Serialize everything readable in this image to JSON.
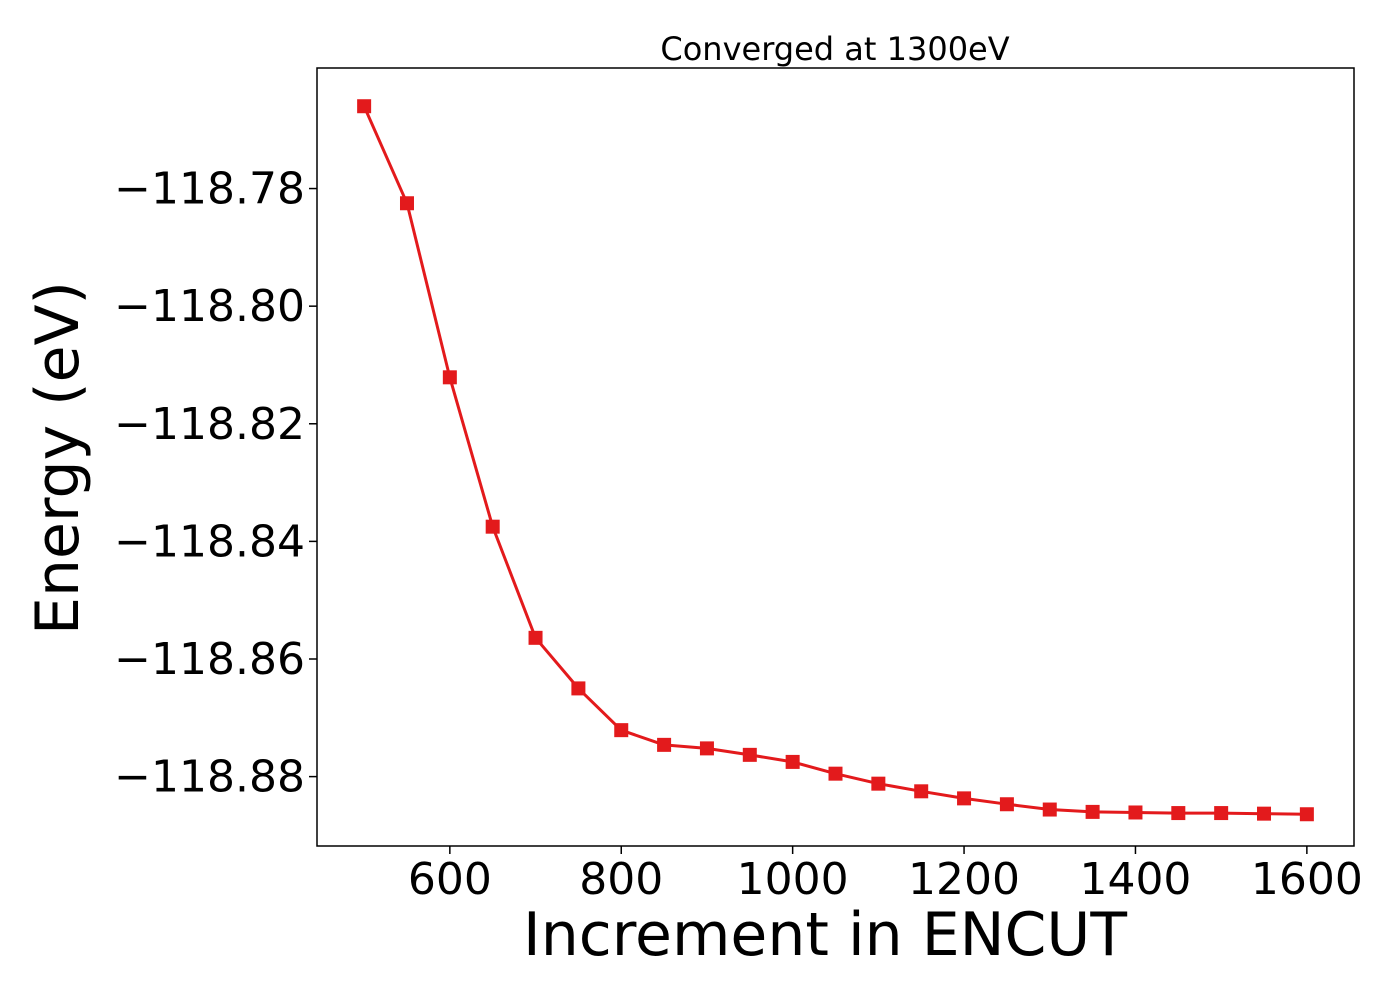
{
  "chart_data": {
    "type": "line",
    "title": "Converged at 1300eV",
    "xlabel": "Increment in ENCUT",
    "ylabel": "Energy (eV)",
    "xlim": [
      445,
      1655
    ],
    "ylim": [
      -118.8918,
      -118.7595
    ],
    "x_ticks": [
      600,
      800,
      1000,
      1200,
      1400,
      1600
    ],
    "x_tick_labels": [
      "600",
      "800",
      "1000",
      "1200",
      "1400",
      "1600"
    ],
    "y_ticks": [
      -118.78,
      -118.8,
      -118.82,
      -118.84,
      -118.86,
      -118.88
    ],
    "y_tick_labels": [
      "−118.78",
      "−118.80",
      "−118.82",
      "−118.84",
      "−118.86",
      "−118.88"
    ],
    "grid": false,
    "series": [
      {
        "color": "#e31a1c",
        "marker": "square",
        "x": [
          500,
          550,
          600,
          650,
          700,
          750,
          800,
          850,
          900,
          950,
          1000,
          1050,
          1100,
          1150,
          1200,
          1250,
          1300,
          1350,
          1400,
          1450,
          1500,
          1550,
          1600
        ],
        "y": [
          -118.766,
          -118.7825,
          -118.8121,
          -118.8375,
          -118.8564,
          -118.865,
          -118.8721,
          -118.8746,
          -118.8752,
          -118.8763,
          -118.8775,
          -118.8795,
          -118.8812,
          -118.8825,
          -118.8837,
          -118.8847,
          -118.8856,
          -118.886,
          -118.8861,
          -118.8862,
          -118.8862,
          -118.8863,
          -118.8864
        ]
      }
    ]
  }
}
